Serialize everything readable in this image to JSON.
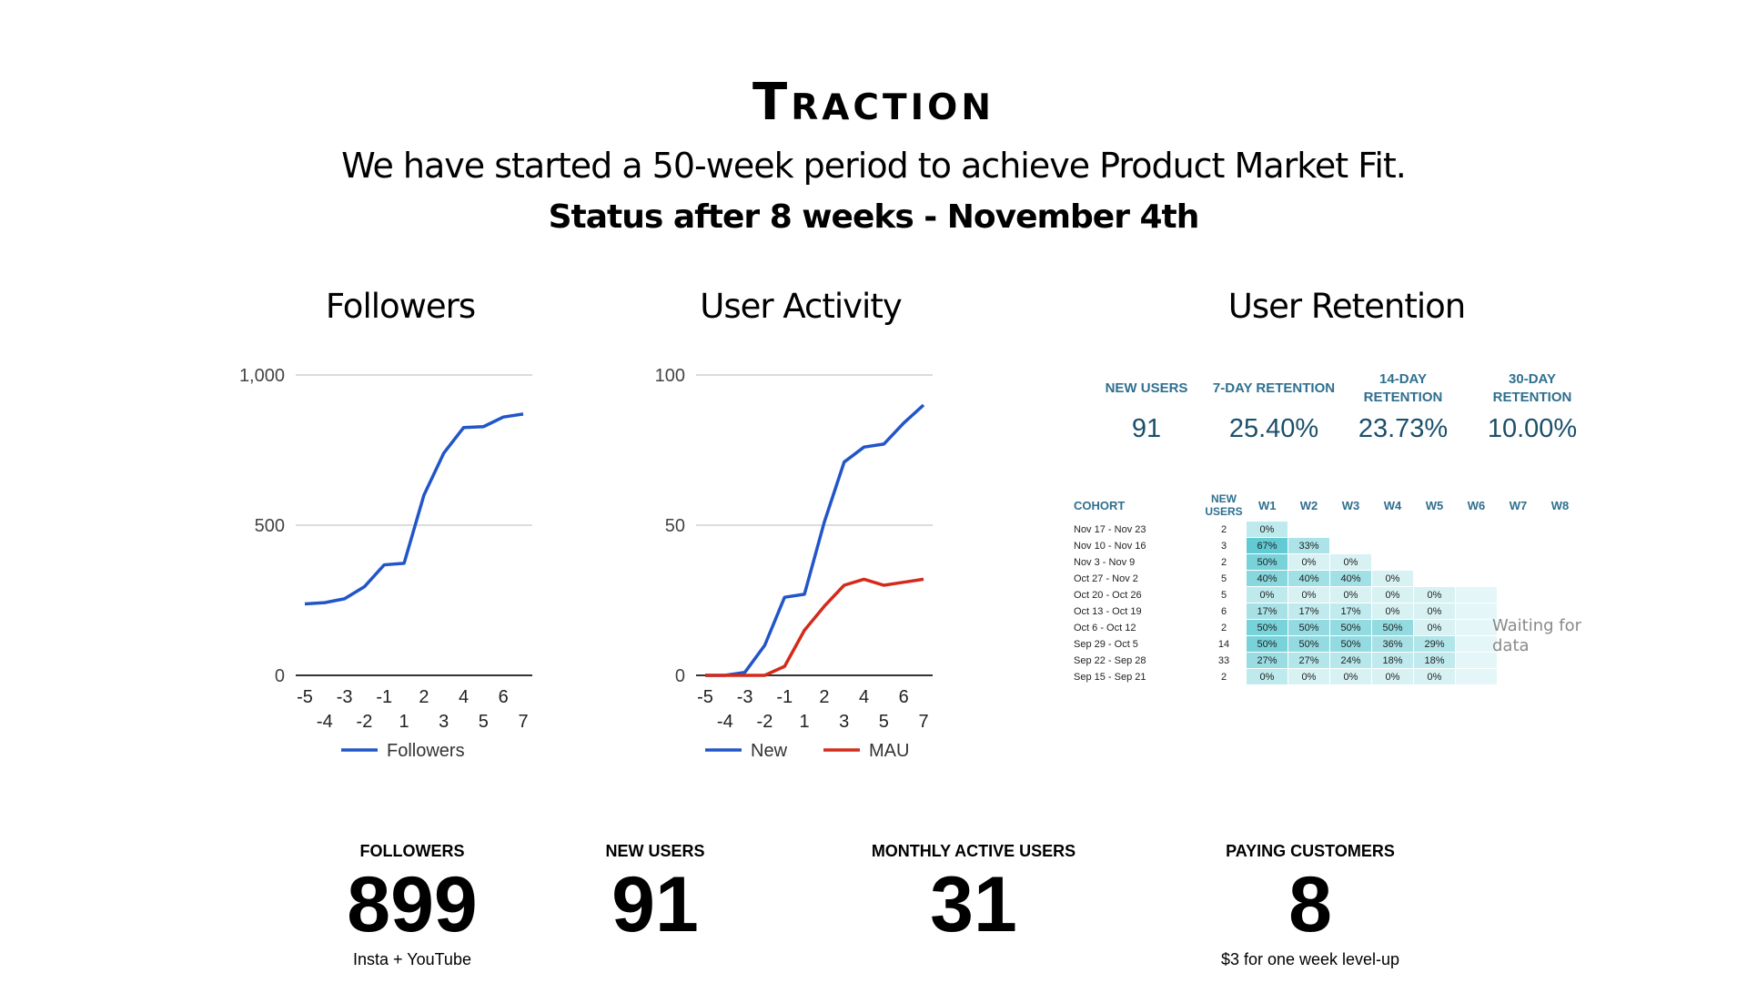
{
  "header": {
    "title": "Traction",
    "subtitle": "We have started a 50-week period to achieve Product Market Fit.",
    "status": "Status after 8 weeks - November 4th"
  },
  "sections": {
    "followers_title": "Followers",
    "activity_title": "User Activity",
    "retention_title": "User Retention"
  },
  "colors": {
    "blue": "#2155c8",
    "red": "#d42a1a",
    "grid": "#d0d0d0",
    "teal": "#5fc8d0"
  },
  "chart_data": [
    {
      "type": "line",
      "title": "",
      "x": [
        -5,
        -4,
        -3,
        -2,
        -1,
        1,
        2,
        3,
        4,
        5,
        6,
        7
      ],
      "xticks_top": [
        "-5",
        "-3",
        "-1",
        "2",
        "4",
        "6"
      ],
      "xticks_bottom": [
        "-4",
        "-2",
        "1",
        "3",
        "5",
        "7"
      ],
      "ylim": [
        0,
        1000
      ],
      "yticks": [
        "0",
        "500",
        "1,000"
      ],
      "yticks_values": [
        0,
        500,
        1000
      ],
      "grid": true,
      "legend": "bottom",
      "series": [
        {
          "name": "Followers",
          "color": "#2155c8",
          "values": [
            238,
            242,
            255,
            295,
            368,
            373,
            600,
            740,
            825,
            828,
            860,
            870
          ]
        }
      ]
    },
    {
      "type": "line",
      "title": "",
      "x": [
        -5,
        -4,
        -3,
        -2,
        -1,
        1,
        2,
        3,
        4,
        5,
        6,
        7
      ],
      "xticks_top": [
        "-5",
        "-3",
        "-1",
        "2",
        "4",
        "6"
      ],
      "xticks_bottom": [
        "-4",
        "-2",
        "1",
        "3",
        "5",
        "7"
      ],
      "ylim": [
        0,
        100
      ],
      "yticks": [
        "0",
        "50",
        "100"
      ],
      "yticks_values": [
        0,
        50,
        100
      ],
      "grid": true,
      "legend": "bottom",
      "series": [
        {
          "name": "New",
          "color": "#2155c8",
          "values": [
            0,
            0,
            1,
            10,
            26,
            27,
            51,
            71,
            76,
            77,
            84,
            90
          ]
        },
        {
          "name": "MAU",
          "color": "#d42a1a",
          "values": [
            0,
            0,
            0,
            0,
            3,
            15,
            23,
            30,
            32,
            30,
            31,
            32
          ]
        }
      ]
    },
    {
      "type": "table",
      "title": "",
      "kpis": [
        {
          "label": "NEW USERS",
          "value": "91"
        },
        {
          "label": "7-DAY RETENTION",
          "value": "25.40%"
        },
        {
          "label": "14-DAY RETENTION",
          "value": "23.73%"
        },
        {
          "label": "30-DAY RETENTION",
          "value": "10.00%"
        }
      ],
      "headers": [
        "COHORT",
        "NEW USERS",
        "W1",
        "W2",
        "W3",
        "W4",
        "W5",
        "W6",
        "W7",
        "W8"
      ],
      "rows": [
        {
          "cohort": "Nov 17 - Nov 23",
          "new": "2",
          "w": [
            "0%"
          ]
        },
        {
          "cohort": "Nov 10 - Nov 16",
          "new": "3",
          "w": [
            "67%",
            "33%"
          ]
        },
        {
          "cohort": "Nov 3 - Nov 9",
          "new": "2",
          "w": [
            "50%",
            "0%",
            "0%"
          ]
        },
        {
          "cohort": "Oct 27 - Nov 2",
          "new": "5",
          "w": [
            "40%",
            "40%",
            "40%",
            "0%"
          ]
        },
        {
          "cohort": "Oct 20 - Oct 26",
          "new": "5",
          "w": [
            "0%",
            "0%",
            "0%",
            "0%",
            "0%"
          ]
        },
        {
          "cohort": "Oct 13 - Oct 19",
          "new": "6",
          "w": [
            "17%",
            "17%",
            "17%",
            "0%",
            "0%"
          ]
        },
        {
          "cohort": "Oct 6 - Oct 12",
          "new": "2",
          "w": [
            "50%",
            "50%",
            "50%",
            "50%",
            "0%"
          ]
        },
        {
          "cohort": "Sep 29 - Oct 5",
          "new": "14",
          "w": [
            "50%",
            "50%",
            "50%",
            "36%",
            "29%"
          ]
        },
        {
          "cohort": "Sep 22 - Sep 28",
          "new": "33",
          "w": [
            "27%",
            "27%",
            "24%",
            "18%",
            "18%"
          ]
        },
        {
          "cohort": "Sep 15 - Sep 21",
          "new": "2",
          "w": [
            "0%",
            "0%",
            "0%",
            "0%",
            "0%"
          ]
        }
      ],
      "note": "Waiting for data"
    }
  ],
  "kpis": [
    {
      "label": "FOLLOWERS",
      "value": "899",
      "note": "Insta + YouTube"
    },
    {
      "label": "NEW USERS",
      "value": "91",
      "note": ""
    },
    {
      "label": "MONTHLY ACTIVE USERS",
      "value": "31",
      "note": ""
    },
    {
      "label": "PAYING CUSTOMERS",
      "value": "8",
      "note": "$3 for one week level-up"
    }
  ]
}
